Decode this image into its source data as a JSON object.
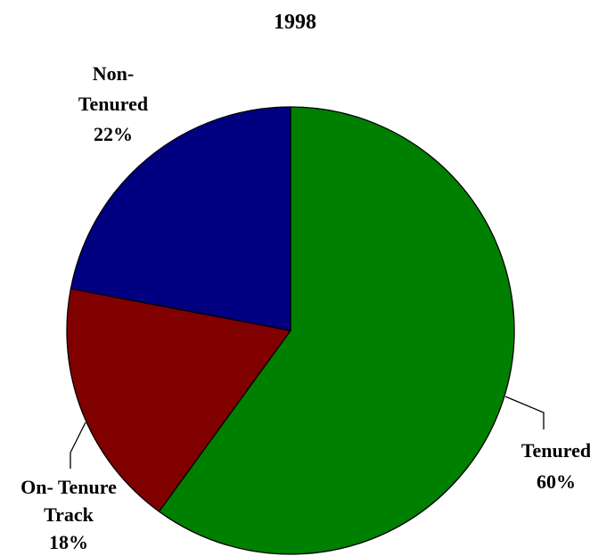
{
  "chart_data": {
    "type": "pie",
    "title": "1998",
    "categories": [
      "Tenured",
      "On- Tenure Track",
      "Non- Tenured"
    ],
    "values": [
      60,
      18,
      22
    ],
    "value_labels": [
      "60%",
      "18%",
      "22%"
    ],
    "colors": [
      "#008000",
      "#800000",
      "#000080"
    ]
  }
}
